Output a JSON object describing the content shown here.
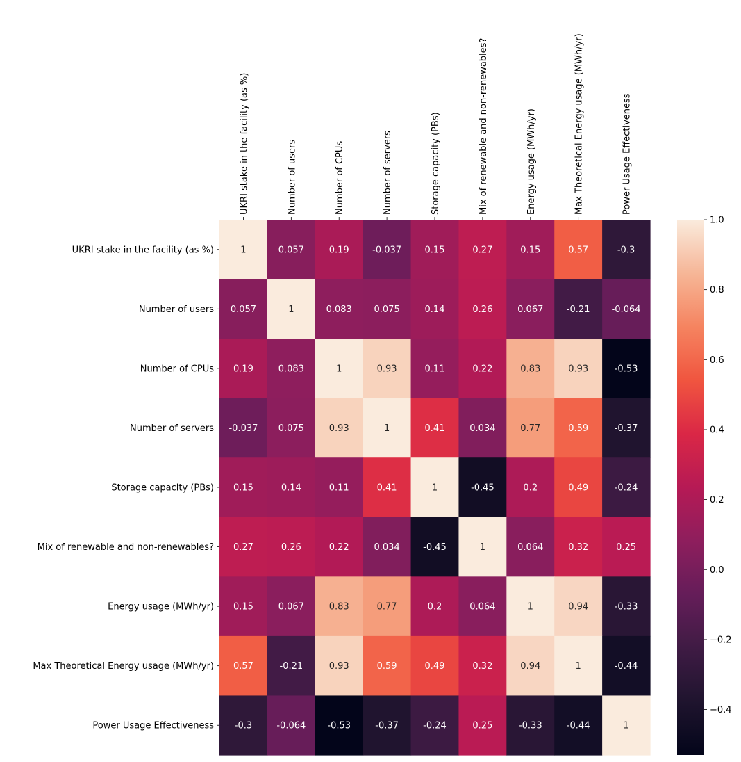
{
  "chart_data": {
    "type": "heatmap",
    "title": "",
    "xlabel": "",
    "ylabel": "",
    "labels": [
      "UKRI stake in the facility (as %)",
      "Number of users",
      "Number of CPUs",
      "Number of servers",
      "Storage capacity (PBs)",
      "Mix of renewable and non-renewables?",
      "Energy usage (MWh/yr)",
      "Max Theoretical Energy usage (MWh/yr)",
      "Power Usage Effectiveness"
    ],
    "matrix": [
      [
        1,
        0.057,
        0.19,
        -0.037,
        0.15,
        0.27,
        0.15,
        0.57,
        -0.3
      ],
      [
        0.057,
        1,
        0.083,
        0.075,
        0.14,
        0.26,
        0.067,
        -0.21,
        -0.064
      ],
      [
        0.19,
        0.083,
        1,
        0.93,
        0.11,
        0.22,
        0.83,
        0.93,
        -0.53
      ],
      [
        -0.037,
        0.075,
        0.93,
        1,
        0.41,
        0.034,
        0.77,
        0.59,
        -0.37
      ],
      [
        0.15,
        0.14,
        0.11,
        0.41,
        1,
        -0.45,
        0.2,
        0.49,
        -0.24
      ],
      [
        0.27,
        0.26,
        0.22,
        0.034,
        -0.45,
        1,
        0.064,
        0.32,
        0.25
      ],
      [
        0.15,
        0.067,
        0.83,
        0.77,
        0.2,
        0.064,
        1,
        0.94,
        -0.33
      ],
      [
        0.57,
        -0.21,
        0.93,
        0.59,
        0.49,
        0.32,
        0.94,
        1,
        -0.44
      ],
      [
        -0.3,
        -0.064,
        -0.53,
        -0.37,
        -0.24,
        0.25,
        -0.33,
        -0.44,
        1
      ]
    ],
    "colormap": "rocket",
    "vmin": -0.53,
    "vmax": 1.0,
    "annotations": true,
    "colorbar": {
      "ticks": [
        -0.4,
        -0.2,
        0.0,
        0.2,
        0.4,
        0.6,
        0.8,
        1.0
      ],
      "tick_labels": [
        "−0.4",
        "−0.2",
        "0.0",
        "0.2",
        "0.4",
        "0.6",
        "0.8",
        "1.0"
      ],
      "placement": "right"
    },
    "x_tick_position": "top",
    "x_tick_rotation": "vertical",
    "grid": false
  }
}
